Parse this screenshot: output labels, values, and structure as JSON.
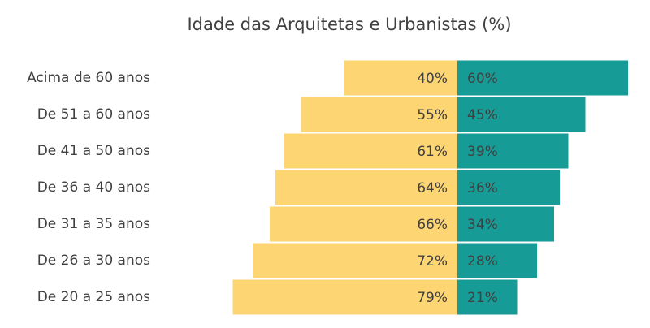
{
  "chart_data": {
    "type": "diverging_bar",
    "title": "Idade das Arquitetas e Urbanistas (%)",
    "categories": [
      "Acima de 60 anos",
      "De 51 a 60 anos",
      "De 41 a 50 anos",
      "De 36 a 40 anos",
      "De 31 a 35 anos",
      "De 26 a 30 anos",
      "De 20 a 25 anos"
    ],
    "series": [
      {
        "color": "#fdd572",
        "values": [
          40,
          55,
          61,
          64,
          66,
          72,
          79
        ],
        "value_labels": [
          "40%",
          "55%",
          "61%",
          "64%",
          "66%",
          "72%",
          "79%"
        ]
      },
      {
        "color": "#179b97",
        "values": [
          60,
          45,
          39,
          36,
          34,
          28,
          21
        ],
        "value_labels": [
          "60%",
          "45%",
          "39%",
          "36%",
          "34%",
          "28%",
          "21%"
        ]
      }
    ]
  }
}
